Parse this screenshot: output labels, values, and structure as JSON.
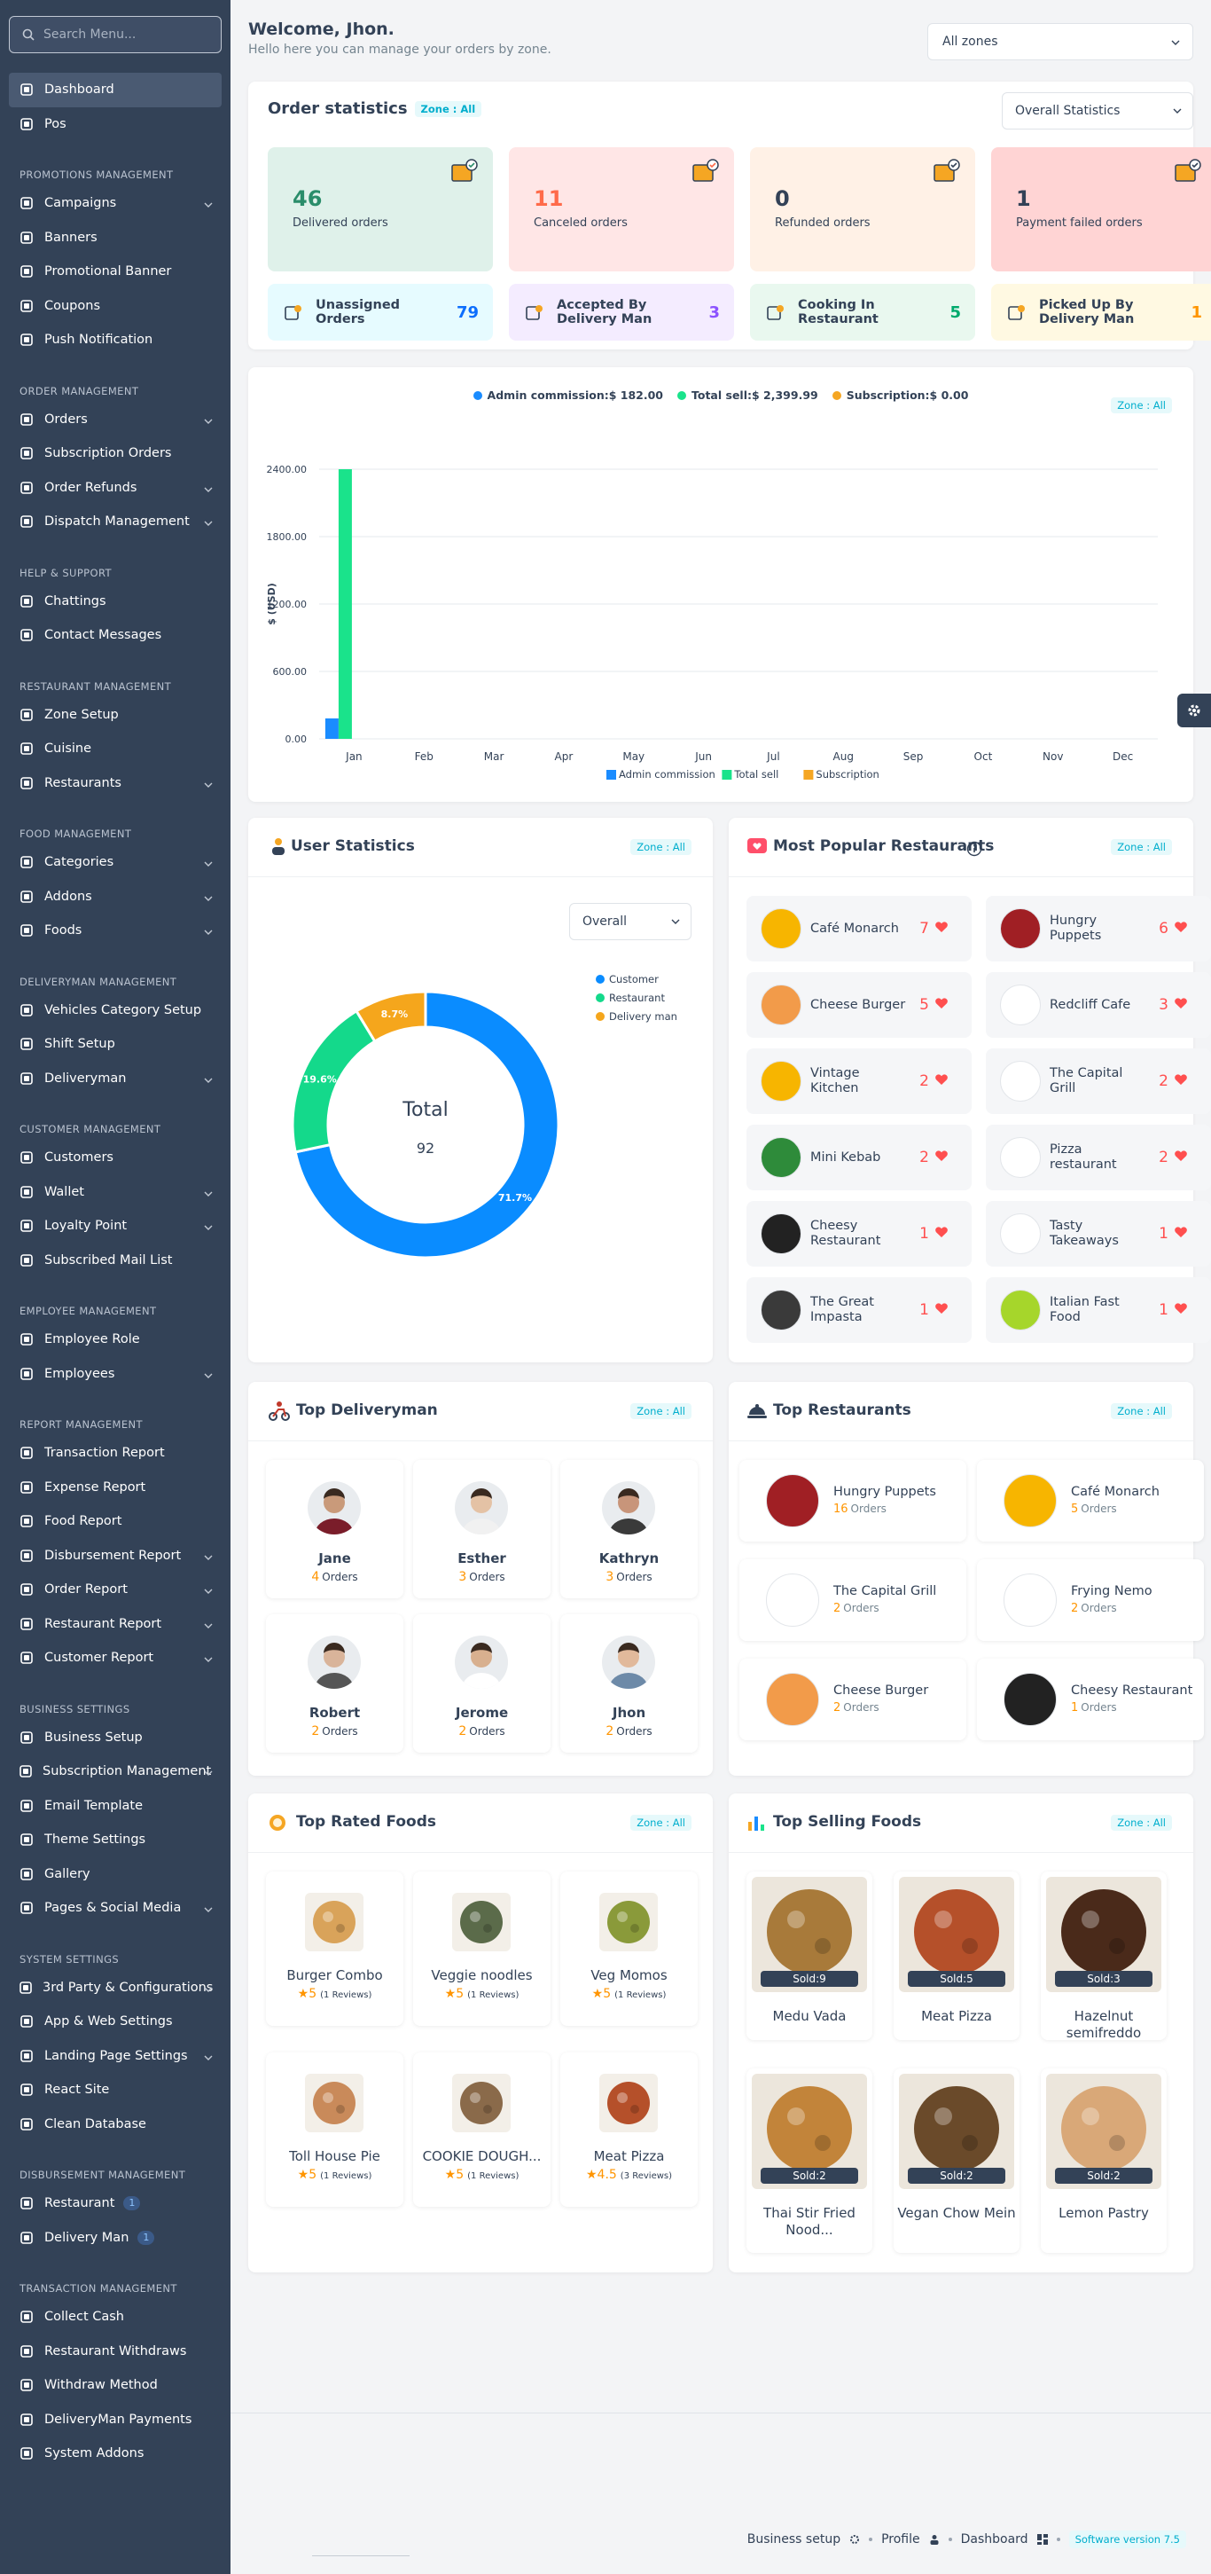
{
  "sidebar": {
    "search_placeholder": "Search Menu...",
    "top_items": [
      {
        "label": "Dashboard",
        "icon": "dashboard-icon",
        "active": true
      },
      {
        "label": "Pos",
        "icon": "pos-icon"
      }
    ],
    "sections": [
      {
        "heading": "PROMOTIONS MANAGEMENT",
        "items": [
          {
            "label": "Campaigns",
            "icon": "campaign-icon",
            "chevron": true
          },
          {
            "label": "Banners",
            "icon": "banner-icon"
          },
          {
            "label": "Promotional Banner",
            "icon": "banner-icon"
          },
          {
            "label": "Coupons",
            "icon": "coupon-icon"
          },
          {
            "label": "Push Notification",
            "icon": "bell-icon"
          }
        ]
      },
      {
        "heading": "ORDER MANAGEMENT",
        "items": [
          {
            "label": "Orders",
            "icon": "orders-icon",
            "chevron": true
          },
          {
            "label": "Subscription Orders",
            "icon": "calendar-icon"
          },
          {
            "label": "Order Refunds",
            "icon": "refund-icon",
            "chevron": true
          },
          {
            "label": "Dispatch Management",
            "icon": "dispatch-icon",
            "chevron": true
          }
        ]
      },
      {
        "heading": "HELP & SUPPORT",
        "items": [
          {
            "label": "Chattings",
            "icon": "chat-icon"
          },
          {
            "label": "Contact Messages",
            "icon": "message-icon"
          }
        ]
      },
      {
        "heading": "RESTAURANT MANAGEMENT",
        "items": [
          {
            "label": "Zone Setup",
            "icon": "location-icon"
          },
          {
            "label": "Cuisine",
            "icon": "link-icon"
          },
          {
            "label": "Restaurants",
            "icon": "restaurant-icon",
            "chevron": true
          }
        ]
      },
      {
        "heading": "FOOD MANAGEMENT",
        "items": [
          {
            "label": "Categories",
            "icon": "category-icon",
            "chevron": true
          },
          {
            "label": "Addons",
            "icon": "addon-icon",
            "chevron": true
          },
          {
            "label": "Foods",
            "icon": "food-icon",
            "chevron": true
          }
        ]
      },
      {
        "heading": "DELIVERYMAN MANAGEMENT",
        "items": [
          {
            "label": "Vehicles Category Setup",
            "icon": "vehicle-icon"
          },
          {
            "label": "Shift Setup",
            "icon": "calendar-icon"
          },
          {
            "label": "Deliveryman",
            "icon": "runner-icon",
            "chevron": true
          }
        ]
      },
      {
        "heading": "CUSTOMER MANAGEMENT",
        "items": [
          {
            "label": "Customers",
            "icon": "customer-icon"
          },
          {
            "label": "Wallet",
            "icon": "wallet-icon",
            "chevron": true
          },
          {
            "label": "Loyalty Point",
            "icon": "loyalty-icon",
            "chevron": true
          },
          {
            "label": "Subscribed Mail List",
            "icon": "mail-icon"
          }
        ]
      },
      {
        "heading": "EMPLOYEE MANAGEMENT",
        "items": [
          {
            "label": "Employee Role",
            "icon": "role-icon"
          },
          {
            "label": "Employees",
            "icon": "user-icon",
            "chevron": true
          }
        ]
      },
      {
        "heading": "REPORT MANAGEMENT",
        "items": [
          {
            "label": "Transaction Report",
            "icon": "chart-icon"
          },
          {
            "label": "Expense Report",
            "icon": "expense-icon"
          },
          {
            "label": "Food Report",
            "icon": "report-icon"
          },
          {
            "label": "Disbursement Report",
            "icon": "report-icon",
            "chevron": true
          },
          {
            "label": "Order Report",
            "icon": "user-icon",
            "chevron": true
          },
          {
            "label": "Restaurant Report",
            "icon": "report-icon",
            "chevron": true
          },
          {
            "label": "Customer Report",
            "icon": "report-icon",
            "chevron": true
          }
        ]
      },
      {
        "heading": "BUSINESS SETTINGS",
        "items": [
          {
            "label": "Business Setup",
            "icon": "gear-icon"
          },
          {
            "label": "Subscription Management",
            "icon": "subscription-icon",
            "chevron": true
          },
          {
            "label": "Email Template",
            "icon": "email-icon"
          },
          {
            "label": "Theme Settings",
            "icon": "theme-icon"
          },
          {
            "label": "Gallery",
            "icon": "gallery-icon"
          },
          {
            "label": "Pages & Social Media",
            "icon": "pages-icon",
            "chevron": true
          }
        ]
      },
      {
        "heading": "SYSTEM SETTINGS",
        "items": [
          {
            "label": "3rd Party & Configurations",
            "icon": "plugin-icon",
            "chevron": true
          },
          {
            "label": "App & Web Settings",
            "icon": "app-icon"
          },
          {
            "label": "Landing Page Settings",
            "icon": "landing-icon",
            "chevron": true
          },
          {
            "label": "React Site",
            "icon": "react-icon"
          },
          {
            "label": "Clean Database",
            "icon": "database-icon"
          }
        ]
      },
      {
        "heading": "DISBURSEMENT MANAGEMENT",
        "items": [
          {
            "label": "Restaurant",
            "icon": "restaurant-icon",
            "badge": "1"
          },
          {
            "label": "Delivery Man",
            "icon": "runner-icon",
            "badge": "1"
          }
        ]
      },
      {
        "heading": "TRANSACTION MANAGEMENT",
        "items": [
          {
            "label": "Collect Cash",
            "icon": "cash-icon"
          },
          {
            "label": "Restaurant Withdraws",
            "icon": "withdraw-icon"
          },
          {
            "label": "Withdraw Method",
            "icon": "method-icon"
          },
          {
            "label": "DeliveryMan Payments",
            "icon": "payment-icon"
          },
          {
            "label": "System Addons",
            "icon": "addon-icon"
          }
        ]
      }
    ]
  },
  "header": {
    "title": "Welcome, Jhon.",
    "subtitle": "Hello here you can manage your orders by zone.",
    "zone_select": "All zones"
  },
  "order_stats": {
    "title": "Order statistics",
    "zone_pill": "Zone : All",
    "select": "Overall Statistics",
    "cards": [
      {
        "value": "46",
        "label": "Delivered orders",
        "bg": "#dff1ea",
        "color": "#2a8d6a"
      },
      {
        "value": "11",
        "label": "Canceled orders",
        "bg": "#ffe6e6",
        "color": "#ff6b4a"
      },
      {
        "value": "0",
        "label": "Refunded orders",
        "bg": "#fff1e6",
        "color": "#334257"
      },
      {
        "value": "1",
        "label": "Payment failed orders",
        "bg": "#ffd4d4",
        "color": "#334257"
      }
    ],
    "mini": [
      {
        "label": "Unassigned Orders",
        "value": "79",
        "bg": "#e6fbff",
        "color": "#0d6efd"
      },
      {
        "label": "Accepted By Delivery Man",
        "value": "3",
        "bg": "#f4ecff",
        "color": "#8c52ff"
      },
      {
        "label": "Cooking In Restaurant",
        "value": "5",
        "bg": "#e9f8ef",
        "color": "#00aa6d"
      },
      {
        "label": "Picked Up By Delivery Man",
        "value": "1",
        "bg": "#fff9e2",
        "color": "#ff9500"
      }
    ]
  },
  "earnings": {
    "zone_pill": "Zone : All",
    "legend_top": [
      {
        "label": "Admin commission:$ 182.00",
        "color": "#1a8cff"
      },
      {
        "label": "Total sell:$ 2,399.99",
        "color": "#1ae38b"
      },
      {
        "label": "Subscription:$ 0.00",
        "color": "#f5a623"
      }
    ]
  },
  "chart_data": [
    {
      "type": "bar",
      "ylabel": "$ (USD)",
      "ylim": [
        0,
        2400
      ],
      "yticks": [
        "0.00",
        "600.00",
        "1200.00",
        "1800.00",
        "2400.00"
      ],
      "categories": [
        "Jan",
        "Feb",
        "Mar",
        "Apr",
        "May",
        "Jun",
        "Jul",
        "Aug",
        "Sep",
        "Oct",
        "Nov",
        "Dec"
      ],
      "series": [
        {
          "name": "Admin commission",
          "color": "#1a8cff",
          "values": [
            182,
            0,
            0,
            0,
            0,
            0,
            0,
            0,
            0,
            0,
            0,
            0
          ]
        },
        {
          "name": "Total sell",
          "color": "#1ae38b",
          "values": [
            2400,
            0,
            0,
            0,
            0,
            0,
            0,
            0,
            0,
            0,
            0,
            0
          ]
        },
        {
          "name": "Subscription",
          "color": "#f5a623",
          "values": [
            0,
            0,
            0,
            0,
            0,
            0,
            0,
            0,
            0,
            0,
            0,
            0
          ]
        }
      ],
      "legend": "bottom"
    },
    {
      "type": "pie",
      "title": "User Statistics",
      "center_label": "Total",
      "center_value": "92",
      "slices": [
        {
          "name": "Customer",
          "value": 71.7,
          "label": "71.7%",
          "color": "#0a8cff"
        },
        {
          "name": "Restaurant",
          "value": 19.6,
          "label": "19.6%",
          "color": "#14d98b"
        },
        {
          "name": "Delivery man",
          "value": 8.7,
          "label": "8.7%",
          "color": "#f5a61c"
        }
      ],
      "legend": "right"
    }
  ],
  "user_stats": {
    "title": "User Statistics",
    "zone_pill": "Zone : All",
    "select": "Overall"
  },
  "popular_restaurants": {
    "title": "Most Popular Restaurants",
    "zone_pill": "Zone : All",
    "items": [
      {
        "name": "Café Monarch",
        "count": "7",
        "logo_bg": "#f7b500"
      },
      {
        "name": "Hungry Puppets",
        "count": "6",
        "logo_bg": "#a01f24"
      },
      {
        "name": "Cheese Burger",
        "count": "5",
        "logo_bg": "#f29b4a"
      },
      {
        "name": "Redcliff Cafe",
        "count": "3",
        "logo_bg": "#ffffff"
      },
      {
        "name": "Vintage Kitchen",
        "count": "2",
        "logo_bg": "#f7b500"
      },
      {
        "name": "The Capital Grill",
        "count": "2",
        "logo_bg": "#ffffff"
      },
      {
        "name": "Mini Kebab",
        "count": "2",
        "logo_bg": "#2e8b3a"
      },
      {
        "name": "Pizza restaurant",
        "count": "2",
        "logo_bg": "#ffffff"
      },
      {
        "name": "Cheesy Restaurant",
        "count": "1",
        "logo_bg": "#222222"
      },
      {
        "name": "Tasty Takeaways",
        "count": "1",
        "logo_bg": "#ffffff"
      },
      {
        "name": "The Great Impasta",
        "count": "1",
        "logo_bg": "#3a3a3a"
      },
      {
        "name": "Italian Fast Food",
        "count": "1",
        "logo_bg": "#a6d62b"
      }
    ]
  },
  "top_deliveryman": {
    "title": "Top Deliveryman",
    "zone_pill": "Zone : All",
    "orders_suffix": "Orders",
    "items": [
      {
        "name": "Jane",
        "count": "4",
        "skin": "#c99a7a",
        "shirt": "#7a1d2a"
      },
      {
        "name": "Esther",
        "count": "3",
        "skin": "#e4c2a5",
        "shirt": "#f1f1f1"
      },
      {
        "name": "Kathryn",
        "count": "3",
        "skin": "#c8957a",
        "shirt": "#3a3a3a"
      },
      {
        "name": "Robert",
        "count": "2",
        "skin": "#d9b49a",
        "shirt": "#555555"
      },
      {
        "name": "Jerome",
        "count": "2",
        "skin": "#d8b08f",
        "shirt": "#ffffff"
      },
      {
        "name": "Jhon",
        "count": "2",
        "skin": "#e1b99b",
        "shirt": "#6d8aa8"
      }
    ]
  },
  "top_restaurants": {
    "title": "Top Restaurants",
    "zone_pill": "Zone : All",
    "orders_suffix": "Orders",
    "items": [
      {
        "name": "Hungry Puppets",
        "count": "16",
        "logo_bg": "#a01f24"
      },
      {
        "name": "Café Monarch",
        "count": "5",
        "logo_bg": "#f7b500"
      },
      {
        "name": "The Capital Grill",
        "count": "2",
        "logo_bg": "#ffffff"
      },
      {
        "name": "Frying Nemo",
        "count": "2",
        "logo_bg": "#ffffff"
      },
      {
        "name": "Cheese Burger",
        "count": "2",
        "logo_bg": "#f29b4a"
      },
      {
        "name": "Cheesy Restaurant",
        "count": "1",
        "logo_bg": "#222222"
      }
    ]
  },
  "top_rated_foods": {
    "title": "Top Rated Foods",
    "zone_pill": "Zone : All",
    "items": [
      {
        "name": "Burger Combo",
        "rating": "5",
        "reviews": "(1 Reviews)",
        "color": "#d9a35a"
      },
      {
        "name": "Veggie noodles",
        "rating": "5",
        "reviews": "(1 Reviews)",
        "color": "#5b6b4a"
      },
      {
        "name": "Veg Momos",
        "rating": "5",
        "reviews": "(1 Reviews)",
        "color": "#8a9a3a"
      },
      {
        "name": "Toll House Pie",
        "rating": "5",
        "reviews": "(1 Reviews)",
        "color": "#c98a5a"
      },
      {
        "name": "COOKIE DOUGH...",
        "rating": "5",
        "reviews": "(1 Reviews)",
        "color": "#8a6a4a"
      },
      {
        "name": "Meat Pizza",
        "rating": "4.5",
        "reviews": "(3 Reviews)",
        "color": "#b5502a"
      }
    ]
  },
  "top_selling_foods": {
    "title": "Top Selling Foods",
    "zone_pill": "Zone : All",
    "items": [
      {
        "name": "Medu Vada",
        "sold": "Sold:9",
        "color": "#a87a3a"
      },
      {
        "name": "Meat Pizza",
        "sold": "Sold:5",
        "color": "#b5502a"
      },
      {
        "name": "Hazelnut semifreddo",
        "sold": "Sold:3",
        "color": "#4a2a1a"
      },
      {
        "name": "Thai Stir Fried Nood...",
        "sold": "Sold:2",
        "color": "#c2843a"
      },
      {
        "name": "Vegan Chow Mein",
        "sold": "Sold:2",
        "color": "#6a4a2a"
      },
      {
        "name": "Lemon Pastry",
        "sold": "Sold:2",
        "color": "#d9a878"
      }
    ]
  },
  "footer": {
    "business_setup": "Business setup",
    "profile": "Profile",
    "dashboard": "Dashboard",
    "version": "Software version 7.5"
  }
}
